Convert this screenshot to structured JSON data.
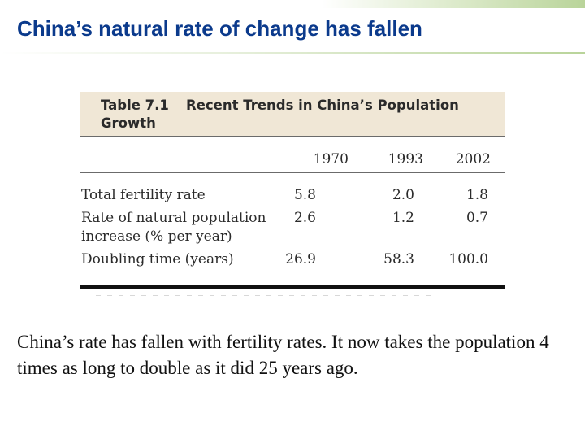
{
  "slide": {
    "title": "China’s natural rate of change has fallen",
    "caption": "China’s rate has fallen with fertility rates.  It now takes the population 4 times as long to double as it did 25 years ago."
  },
  "table": {
    "label": "Table 7.1",
    "title_line1": "Recent Trends in China’s Population",
    "title_line2": "Growth",
    "columns": [
      "1970",
      "1993",
      "2002"
    ],
    "rows": [
      {
        "label": [
          "Total fertility rate"
        ],
        "values": [
          "5.8",
          "2.0",
          "1.8"
        ]
      },
      {
        "label": [
          "Rate of natural population",
          "increase (% per year)"
        ],
        "values": [
          "2.6",
          "1.2",
          "0.7"
        ]
      },
      {
        "label": [
          "Doubling time (years)"
        ],
        "values": [
          "26.9",
          "58.3",
          "100.0"
        ]
      }
    ]
  },
  "colors": {
    "title": "#0b3a8c",
    "table_header_bg": "#f0e7d6",
    "accent_green": "#b9d49a"
  }
}
